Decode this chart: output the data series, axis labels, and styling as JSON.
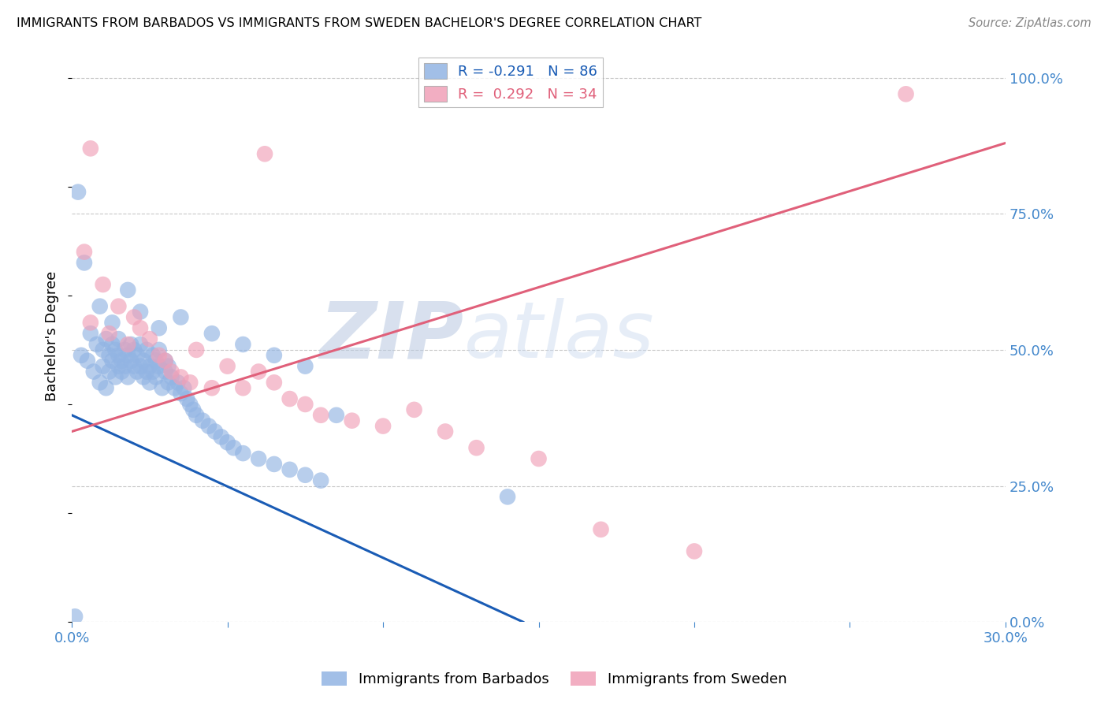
{
  "title": "IMMIGRANTS FROM BARBADOS VS IMMIGRANTS FROM SWEDEN BACHELOR'S DEGREE CORRELATION CHART",
  "source": "Source: ZipAtlas.com",
  "ylabel": "Bachelor's Degree",
  "xlim": [
    0.0,
    0.3
  ],
  "ylim": [
    0.0,
    1.05
  ],
  "xticks": [
    0.0,
    0.05,
    0.1,
    0.15,
    0.2,
    0.25,
    0.3
  ],
  "yticks": [
    0.0,
    0.25,
    0.5,
    0.75,
    1.0
  ],
  "ytick_labels_right": [
    "0.0%",
    "25.0%",
    "50.0%",
    "75.0%",
    "100.0%"
  ],
  "blue_R": -0.291,
  "blue_N": 86,
  "pink_R": 0.292,
  "pink_N": 34,
  "blue_color": "#92b4e3",
  "pink_color": "#f0a0b8",
  "blue_line_color": "#1a5cb5",
  "pink_line_color": "#e0607a",
  "tick_color": "#4488cc",
  "grid_color": "#c8c8c8",
  "watermark_zip": "ZIP",
  "watermark_atlas": "atlas",
  "legend_blue_label": "Immigrants from Barbados",
  "legend_pink_label": "Immigrants from Sweden",
  "blue_x": [
    0.003,
    0.005,
    0.006,
    0.007,
    0.008,
    0.009,
    0.01,
    0.01,
    0.011,
    0.011,
    0.012,
    0.012,
    0.013,
    0.013,
    0.014,
    0.014,
    0.015,
    0.015,
    0.015,
    0.016,
    0.016,
    0.017,
    0.017,
    0.018,
    0.018,
    0.019,
    0.019,
    0.02,
    0.02,
    0.021,
    0.021,
    0.022,
    0.022,
    0.023,
    0.023,
    0.024,
    0.024,
    0.025,
    0.025,
    0.026,
    0.026,
    0.027,
    0.027,
    0.028,
    0.028,
    0.029,
    0.03,
    0.03,
    0.031,
    0.031,
    0.032,
    0.033,
    0.034,
    0.035,
    0.036,
    0.037,
    0.038,
    0.039,
    0.04,
    0.042,
    0.044,
    0.046,
    0.048,
    0.05,
    0.052,
    0.055,
    0.06,
    0.065,
    0.07,
    0.075,
    0.08,
    0.002,
    0.004,
    0.009,
    0.013,
    0.018,
    0.022,
    0.028,
    0.035,
    0.045,
    0.055,
    0.065,
    0.075,
    0.085,
    0.001,
    0.14
  ],
  "blue_y": [
    0.49,
    0.48,
    0.53,
    0.46,
    0.51,
    0.44,
    0.5,
    0.47,
    0.52,
    0.43,
    0.49,
    0.46,
    0.51,
    0.48,
    0.5,
    0.45,
    0.49,
    0.47,
    0.52,
    0.48,
    0.46,
    0.5,
    0.47,
    0.49,
    0.45,
    0.51,
    0.48,
    0.47,
    0.5,
    0.46,
    0.49,
    0.47,
    0.51,
    0.45,
    0.48,
    0.46,
    0.5,
    0.47,
    0.44,
    0.49,
    0.46,
    0.48,
    0.45,
    0.47,
    0.5,
    0.43,
    0.46,
    0.48,
    0.44,
    0.47,
    0.45,
    0.43,
    0.44,
    0.42,
    0.43,
    0.41,
    0.4,
    0.39,
    0.38,
    0.37,
    0.36,
    0.35,
    0.34,
    0.33,
    0.32,
    0.31,
    0.3,
    0.29,
    0.28,
    0.27,
    0.26,
    0.79,
    0.66,
    0.58,
    0.55,
    0.61,
    0.57,
    0.54,
    0.56,
    0.53,
    0.51,
    0.49,
    0.47,
    0.38,
    0.01,
    0.23
  ],
  "pink_x": [
    0.004,
    0.006,
    0.01,
    0.012,
    0.015,
    0.018,
    0.02,
    0.022,
    0.025,
    0.028,
    0.03,
    0.032,
    0.035,
    0.038,
    0.04,
    0.045,
    0.05,
    0.055,
    0.06,
    0.065,
    0.07,
    0.075,
    0.08,
    0.09,
    0.1,
    0.11,
    0.12,
    0.13,
    0.15,
    0.17,
    0.006,
    0.268,
    0.062,
    0.2
  ],
  "pink_y": [
    0.68,
    0.55,
    0.62,
    0.53,
    0.58,
    0.51,
    0.56,
    0.54,
    0.52,
    0.49,
    0.48,
    0.46,
    0.45,
    0.44,
    0.5,
    0.43,
    0.47,
    0.43,
    0.46,
    0.44,
    0.41,
    0.4,
    0.38,
    0.37,
    0.36,
    0.39,
    0.35,
    0.32,
    0.3,
    0.17,
    0.87,
    0.97,
    0.86,
    0.13
  ],
  "blue_trendline_x": [
    0.0,
    0.145
  ],
  "blue_trendline_y": [
    0.38,
    0.0
  ],
  "pink_trendline_x": [
    0.0,
    0.3
  ],
  "pink_trendline_y": [
    0.35,
    0.88
  ]
}
